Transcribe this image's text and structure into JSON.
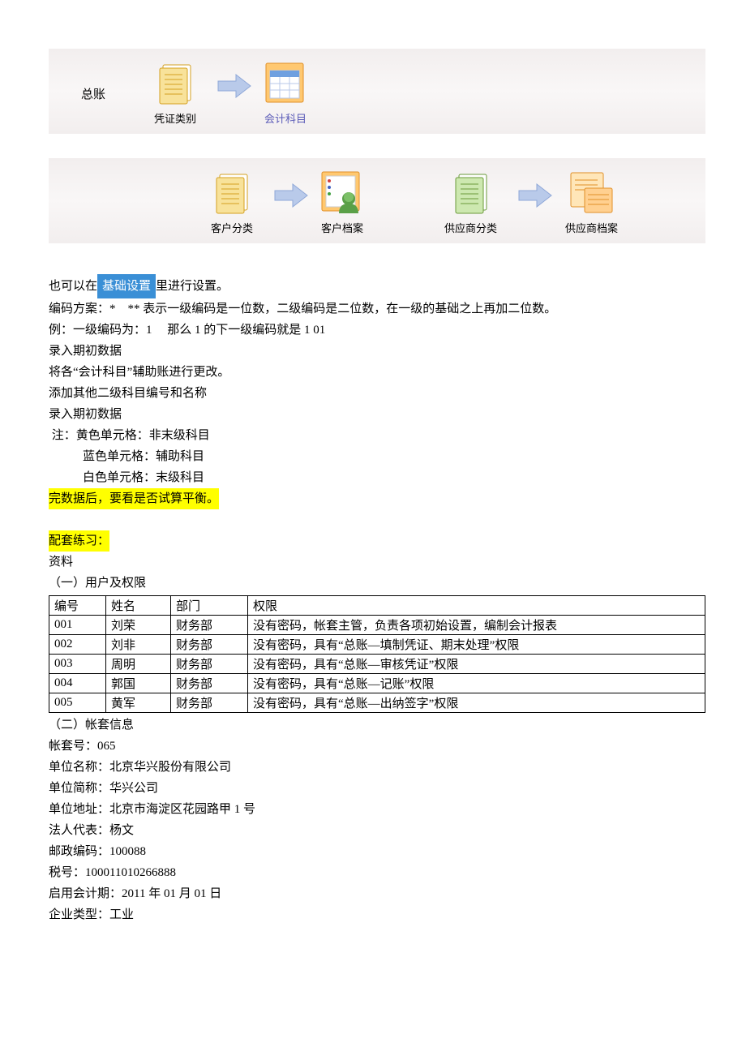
{
  "toolbar1": {
    "label": "总账",
    "items": [
      {
        "kind": "folder",
        "caption": "凭证类别",
        "link": false
      },
      {
        "kind": "arrow"
      },
      {
        "kind": "account",
        "caption": "会计科目",
        "link": true
      }
    ]
  },
  "toolbar2": {
    "items": [
      {
        "kind": "folder",
        "caption": "客户分类",
        "link": false
      },
      {
        "kind": "arrow"
      },
      {
        "kind": "customer",
        "caption": "客户档案",
        "link": false
      },
      {
        "kind": "spacer"
      },
      {
        "kind": "folder-green",
        "caption": "供应商分类",
        "link": false
      },
      {
        "kind": "arrow"
      },
      {
        "kind": "supplier",
        "caption": "供应商档案",
        "link": false
      }
    ]
  },
  "body": {
    "line_settings_pre": "也可以在",
    "settings_btn": "基础设置",
    "line_settings_post": "里进行设置。",
    "line_scheme": "编码方案：*　** 表示一级编码是一位数，二级编码是二位数，在一级的基础之上再加二位数。",
    "line_example": "例：一级编码为：1　 那么 1 的下一级编码就是 1 01",
    "line_input1": "录入期初数据",
    "line_modify": "将各“会计科目”辅助账进行更改。",
    "line_add": "添加其他二级科目编号和名称",
    "line_input2": "录入期初数据",
    "line_note": " 注：黄色单元格：非末级科目",
    "line_note_blue": "蓝色单元格：辅助科目",
    "line_note_white": "白色单元格：末级科目",
    "line_balance": "完数据后，要看是否试算平衡。",
    "practice_title": "配套练习：",
    "material": "资料",
    "section1": "（一）用户及权限"
  },
  "table": {
    "headers": [
      "编号",
      "姓名",
      "部门",
      "权限"
    ],
    "col_widths": [
      "70px",
      "80px",
      "95px",
      "auto"
    ],
    "rows": [
      [
        "001",
        "刘荣",
        "财务部",
        "没有密码，帐套主管，负责各项初始设置，编制会计报表"
      ],
      [
        "002",
        "刘非",
        "财务部",
        "没有密码，具有“总账—填制凭证、期末处理”权限"
      ],
      [
        "003",
        "周明",
        "财务部",
        "没有密码，具有“总账—审核凭证”权限"
      ],
      [
        "004",
        "郭国",
        "财务部",
        "没有密码，具有“总账—记账”权限"
      ],
      [
        "005",
        "黄军",
        "财务部",
        "没有密码，具有“总账—出纳签字”权限"
      ]
    ]
  },
  "account_info": {
    "title": "（二）帐套信息",
    "lines": [
      "帐套号：065",
      "单位名称：北京华兴股份有限公司",
      "单位简称：华兴公司",
      "单位地址：北京市海淀区花园路甲 1 号",
      "法人代表：杨文",
      "邮政编码：100088",
      "税号：100011010266888",
      "启用会计期：2011 年 01 月 01 日",
      "企业类型：工业"
    ]
  },
  "icons": {
    "folder_fill": "#f8e29a",
    "folder_stroke": "#d4a020",
    "folder_green_fill": "#cde8b0",
    "folder_green_stroke": "#6a9a3a",
    "account_fill": "#ffc870",
    "account_stroke": "#e09028",
    "customer_fill": "#ffc870",
    "customer_stroke": "#e09028",
    "person_fill": "#5aa048",
    "supplier_fill": "#ffe6b8",
    "supplier_stroke": "#e09028",
    "arrow_fill": "#b9caea",
    "arrow_stroke": "#8fa8d8"
  }
}
